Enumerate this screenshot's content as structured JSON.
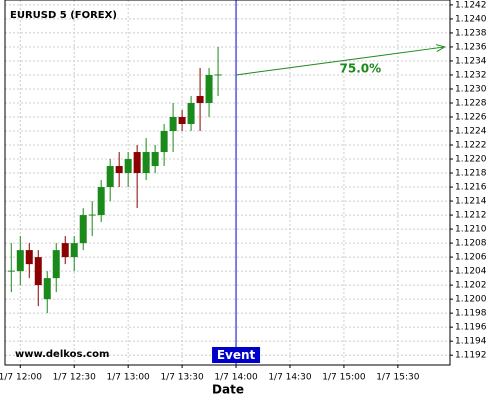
{
  "chart_data": {
    "type": "candlestick",
    "title": "EURUSD 5 (FOREX)",
    "watermark": "www.delkos.com",
    "x_label": "Date",
    "categories": [
      null,
      null,
      null,
      null,
      null,
      null,
      null,
      null,
      null,
      null,
      null,
      null,
      null,
      null,
      null,
      null,
      null,
      null,
      null,
      null,
      null,
      null,
      null,
      null
    ],
    "open": [
      1.1204,
      1.1204,
      1.1207,
      1.1206,
      1.12,
      1.1203,
      1.1208,
      1.1206,
      1.1208,
      1.1212,
      1.1212,
      1.1216,
      1.1219,
      1.1218,
      1.1221,
      1.1218,
      1.1219,
      1.1221,
      1.1224,
      1.1226,
      1.1225,
      1.1229,
      1.1228,
      1.1232
    ],
    "high": [
      1.1208,
      1.1209,
      1.1208,
      1.1207,
      1.1204,
      1.1208,
      1.1209,
      1.1209,
      1.1213,
      1.1214,
      1.1217,
      1.122,
      1.1221,
      1.1221,
      1.1222,
      1.1223,
      1.1222,
      1.1225,
      1.1228,
      1.1227,
      1.1229,
      1.1233,
      1.1233,
      1.1236
    ],
    "low": [
      1.1201,
      1.1202,
      1.1203,
      1.1199,
      1.1198,
      1.1201,
      1.1205,
      1.1204,
      1.1207,
      1.1209,
      1.1211,
      1.1214,
      1.1216,
      1.1216,
      1.1213,
      1.1217,
      1.1218,
      1.1219,
      1.1221,
      1.1224,
      1.1224,
      1.1224,
      1.1226,
      1.1229
    ],
    "close": [
      1.1204,
      1.1207,
      1.1205,
      1.1202,
      1.1203,
      1.1207,
      1.1206,
      1.1208,
      1.1212,
      1.1212,
      1.1216,
      1.1219,
      1.1218,
      1.122,
      1.1218,
      1.1221,
      1.1221,
      1.1224,
      1.1226,
      1.1225,
      1.1228,
      1.1228,
      1.1232,
      1.1232
    ],
    "up_color": "#1a8a1a",
    "down_color": "#8b0000",
    "xlim": [
      -0.7,
      48.8
    ],
    "xticks": [
      {
        "value": 1,
        "label": "1/7 12:00"
      },
      {
        "value": 7,
        "label": "1/7 12:30"
      },
      {
        "value": 13,
        "label": "1/7 13:00"
      },
      {
        "value": 19,
        "label": "1/7 13:30"
      },
      {
        "value": 25,
        "label": "1/7 14:00"
      },
      {
        "value": 31,
        "label": "1/7 14:30"
      },
      {
        "value": 37,
        "label": "1/7 15:00"
      },
      {
        "value": 43,
        "label": "1/7 15:30"
      }
    ],
    "ylim": [
      1.11906,
      1.12427
    ],
    "yticks": [
      1.1192,
      1.1194,
      1.1196,
      1.1198,
      {
        "value": 1.12,
        "label": "1.1200"
      },
      1.1202,
      1.1204,
      1.1206,
      1.1208,
      {
        "value": 1.121,
        "label": "1.1210"
      },
      1.1212,
      1.1214,
      1.1216,
      1.1218,
      {
        "value": 1.122,
        "label": "1.1220"
      },
      1.1222,
      1.1224,
      1.1226,
      1.1228,
      {
        "value": 1.123,
        "label": "1.1230"
      },
      1.1232,
      1.1234,
      1.1236,
      1.1238,
      {
        "value": 1.124,
        "label": "1.1240"
      },
      1.1242
    ],
    "grid": true,
    "event": {
      "label": "Event",
      "x": 25,
      "color": "#0000cc"
    },
    "projection": {
      "label": "75.0%",
      "x": [
        25,
        48.2
      ],
      "y": [
        1.1232,
        1.1236
      ],
      "color": "#1a8a1a"
    }
  }
}
